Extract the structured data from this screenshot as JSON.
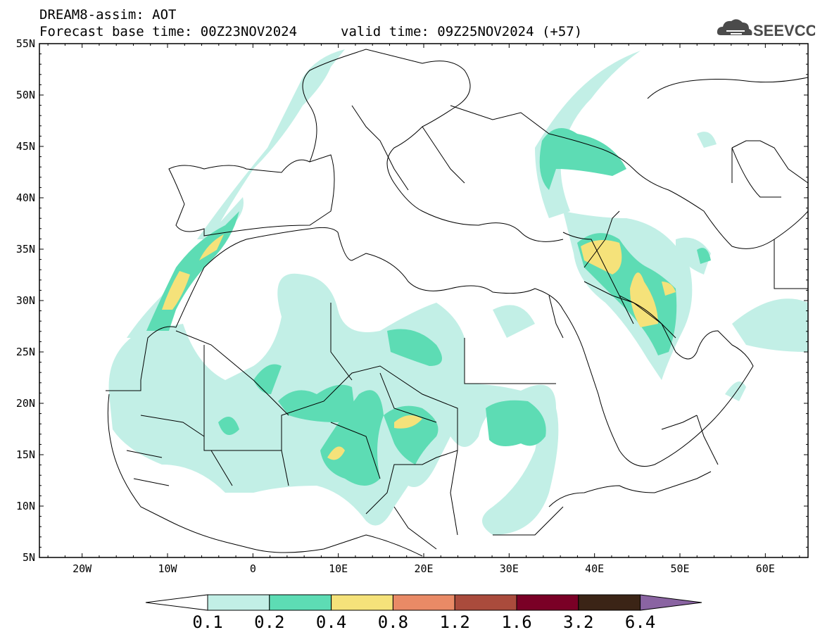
{
  "header": {
    "title": "DREAM8-assim: AOT",
    "base_time": "Forecast base time: 00Z23NOV2024",
    "valid_time": "valid time: 09Z25NOV2024 (+57)"
  },
  "logo": {
    "text": "SEEVCCC",
    "icon": "cloud-icon"
  },
  "map": {
    "lat_labels": [
      "55N",
      "50N",
      "45N",
      "40N",
      "35N",
      "30N",
      "25N",
      "20N",
      "15N",
      "10N",
      "5N"
    ],
    "lon_labels": [
      "20W",
      "10W",
      "0",
      "10E",
      "20E",
      "30E",
      "40E",
      "50E",
      "60E"
    ],
    "lat_range": [
      5,
      55
    ],
    "lon_range": [
      -25,
      65
    ]
  },
  "colorbar": {
    "labels": [
      "0.1",
      "0.2",
      "0.4",
      "0.8",
      "1.2",
      "1.6",
      "3.2",
      "6.4"
    ],
    "colors": [
      "#ffffff",
      "#c2efe6",
      "#5ddcb4",
      "#f5e27a",
      "#e98a66",
      "#aa4b3c",
      "#7a0026",
      "#3b2416",
      "#8a64a2"
    ]
  }
}
